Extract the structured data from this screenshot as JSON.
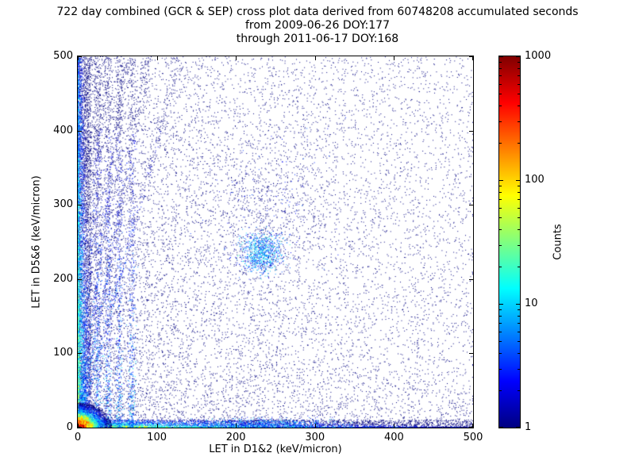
{
  "title": {
    "line1": "722 day combined (GCR & SEP) cross plot data derived from 60748208 accumulated seconds",
    "line2": "from 2009-06-26 DOY:177",
    "line3": "through 2011-06-17 DOY:168"
  },
  "chart_data": {
    "type": "heatmap",
    "subtype": "2d-histogram-cross-plot",
    "title": "722 day combined (GCR & SEP) cross plot data derived from 60748208 accumulated seconds from 2009-06-26 DOY:177 through 2011-06-17 DOY:168",
    "xlabel": "LET in D1&2 (keV/micron)",
    "ylabel": "LET in D5&6 (keV/micron)",
    "xlim": [
      0,
      500
    ],
    "ylim": [
      0,
      500
    ],
    "xticks": [
      0,
      100,
      200,
      300,
      400,
      500
    ],
    "yticks": [
      0,
      100,
      200,
      300,
      400,
      500
    ],
    "grid": false,
    "colorbar": {
      "label": "Counts",
      "scale": "log",
      "min": 1,
      "max": 1000,
      "ticks": [
        1,
        10,
        100,
        1000
      ],
      "colormap": "jet",
      "colormap_stops": [
        {
          "pos": 0.0,
          "color": "#000080"
        },
        {
          "pos": 0.125,
          "color": "#0000ff"
        },
        {
          "pos": 0.375,
          "color": "#00ffff"
        },
        {
          "pos": 0.625,
          "color": "#ffff00"
        },
        {
          "pos": 0.875,
          "color": "#ff0000"
        },
        {
          "pos": 1.0,
          "color": "#800000"
        }
      ]
    },
    "render": {
      "seed": 1337,
      "point_color_low": "#000080",
      "features": [
        {
          "name": "sparse-background",
          "kind": "background",
          "n": 10000,
          "x_pow": 2.0,
          "y_pow": 1.25,
          "count": 1
        },
        {
          "name": "uniform-background",
          "kind": "uniform",
          "n": 2600,
          "count": 1
        },
        {
          "name": "left-vertical-band",
          "kind": "band_left",
          "n": 5200,
          "width": 16,
          "count_base": 28
        },
        {
          "name": "bottom-horizontal-band",
          "kind": "band_bottom",
          "n": 6200,
          "height": 11,
          "count_base": 45
        },
        {
          "name": "vertical-streaks",
          "kind": "streaks",
          "xs": [
            25,
            38,
            52,
            68
          ],
          "n_each": 550,
          "jitter": 2.5,
          "count_base": 6
        },
        {
          "name": "fan-streaks",
          "kind": "fan",
          "tops": [
            35,
            60,
            90,
            130
          ],
          "n_each": 450,
          "count_base": 5
        },
        {
          "name": "diagonal-band",
          "kind": "diagonal",
          "from": 15,
          "to": 320,
          "jitter": 5,
          "count_base": 4
        },
        {
          "name": "diffuse-mid-cloud",
          "kind": "blob",
          "cx": 240,
          "cy": 295,
          "sx": 40,
          "sy": 45,
          "n": 500,
          "count_base": 2
        },
        {
          "name": "diagonal-cluster",
          "kind": "blob",
          "cx": 232,
          "cy": 236,
          "sx": 13,
          "sy": 13,
          "n": 850,
          "count_base": 12
        },
        {
          "name": "bottom-mid-cluster",
          "kind": "blob",
          "cx": 235,
          "cy": 5,
          "sx": 45,
          "sy": 4,
          "n": 850,
          "count_base": 8
        },
        {
          "name": "origin-hotspot",
          "kind": "hotspot",
          "n": 4500,
          "radius": 34,
          "count_base": 1000
        }
      ]
    }
  }
}
